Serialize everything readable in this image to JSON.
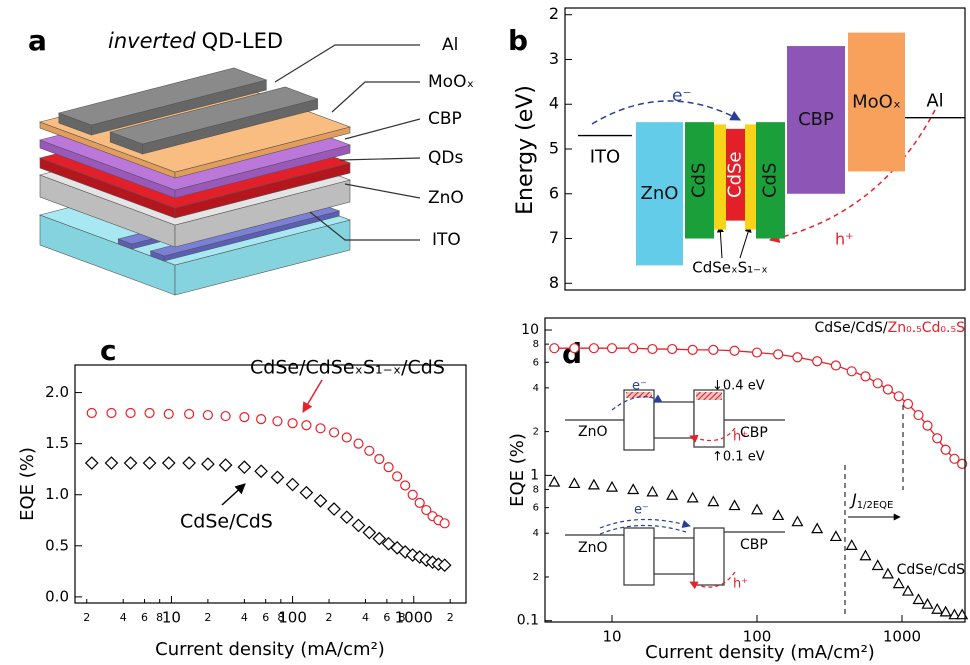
{
  "figure_a": {
    "label": "a",
    "title_italic": "inverted",
    "title": "QD-LED",
    "layers": [
      "Al",
      "MoOₓ",
      "CBP",
      "QDs",
      "ZnO",
      "ITO"
    ]
  },
  "chart_data": [
    {
      "type": "band",
      "panel_label": "b",
      "ylabel": "Energy (eV)",
      "ylim": [
        8.15,
        1.85
      ],
      "yticks": [
        2,
        3,
        4,
        5,
        6,
        7,
        8
      ],
      "bands": [
        {
          "name": "ZnO",
          "top": 4.4,
          "bottom": 7.6,
          "color": "#63cde9"
        },
        {
          "name": "CdS",
          "top": 4.4,
          "bottom": 7.0,
          "color": "#1a9f3a"
        },
        {
          "name": null,
          "top": 4.45,
          "bottom": 6.8,
          "color": "#f7d417"
        },
        {
          "name": "CdSe",
          "top": 4.55,
          "bottom": 6.6,
          "color": "#e3202a"
        },
        {
          "name": null,
          "top": 4.45,
          "bottom": 6.8,
          "color": "#f7d417"
        },
        {
          "name": "CdS",
          "top": 4.4,
          "bottom": 7.0,
          "color": "#1a9f3a"
        },
        {
          "name": "CBP",
          "top": 2.7,
          "bottom": 6.0,
          "color": "#8d55b5"
        },
        {
          "name": "MoOₓ",
          "top": 2.4,
          "bottom": 5.5,
          "color": "#f7a15c"
        }
      ],
      "levels": [
        {
          "name": "ITO",
          "value": 4.7
        },
        {
          "name": "Al",
          "value": 4.3
        }
      ],
      "annotations": {
        "electron": "e⁻",
        "hole": "h⁺",
        "interlayer": "CdSeₓS₁₋ₓ"
      }
    },
    {
      "type": "line",
      "panel_label": "c",
      "xlabel": "Current density (mA/cm²)",
      "ylabel": "EQE (%)",
      "xscale": "log",
      "xlim": [
        1.6,
        2700
      ],
      "ylim": [
        -0.06,
        2.27
      ],
      "xticks": [
        2,
        4,
        6,
        8,
        10,
        {
          "value": 20,
          "label": "2"
        },
        {
          "value": 40,
          "label": "4"
        },
        {
          "value": 60,
          "label": "6"
        },
        {
          "value": 80,
          "label": "8"
        },
        100,
        {
          "value": 200,
          "label": "2"
        },
        {
          "value": 400,
          "label": "4"
        },
        {
          "value": 600,
          "label": "6"
        },
        {
          "value": 800,
          "label": "8"
        },
        1000,
        {
          "value": 2000,
          "label": "2"
        }
      ],
      "yticks": [
        {
          "value": 0,
          "label": "0.0"
        },
        {
          "value": 0.5,
          "label": "0.5"
        },
        {
          "value": 1,
          "label": "1.0"
        },
        {
          "value": 1.5,
          "label": "1.5"
        },
        {
          "value": 2,
          "label": "2.0"
        }
      ],
      "x": [
        2.2,
        3.2,
        4.6,
        6.6,
        9.5,
        14,
        20,
        28,
        40,
        55,
        75,
        100,
        130,
        170,
        220,
        280,
        350,
        430,
        520,
        620,
        730,
        850,
        980,
        1120,
        1270,
        1430,
        1600,
        1800
      ],
      "series": [
        {
          "name": "CdSe/CdSeₓS₁₋ₓ/CdS",
          "color": "#e8202a",
          "marker": "circle",
          "values": [
            1.8,
            1.8,
            1.8,
            1.8,
            1.79,
            1.79,
            1.78,
            1.77,
            1.76,
            1.74,
            1.72,
            1.7,
            1.68,
            1.65,
            1.61,
            1.56,
            1.5,
            1.43,
            1.35,
            1.27,
            1.18,
            1.09,
            1.0,
            0.92,
            0.85,
            0.79,
            0.75,
            0.72
          ]
        },
        {
          "name": "CdSe/CdS",
          "color": "#000000",
          "marker": "diamond",
          "values": [
            1.31,
            1.31,
            1.31,
            1.31,
            1.31,
            1.31,
            1.3,
            1.29,
            1.27,
            1.23,
            1.17,
            1.1,
            1.02,
            0.94,
            0.86,
            0.78,
            0.7,
            0.63,
            0.57,
            0.52,
            0.48,
            0.44,
            0.41,
            0.39,
            0.36,
            0.34,
            0.32,
            0.31
          ]
        }
      ]
    },
    {
      "type": "line",
      "panel_label": "d",
      "xlabel": "Current density (mA/cm²)",
      "ylabel": "EQE (%)",
      "xscale": "log",
      "yscale": "log",
      "xlim": [
        3.45,
        2720
      ],
      "ylim": [
        0.098,
        12.1
      ],
      "xticks": [
        10,
        100,
        1000
      ],
      "yticks": [
        0.1,
        {
          "value": 0.2,
          "label": "2"
        },
        {
          "value": 0.4,
          "label": "4"
        },
        {
          "value": 0.6,
          "label": "6"
        },
        {
          "value": 0.8,
          "label": "8"
        },
        1,
        {
          "value": 2,
          "label": "2"
        },
        {
          "value": 4,
          "label": "4"
        },
        {
          "value": 6,
          "label": "6"
        },
        {
          "value": 8,
          "label": "8"
        },
        10
      ],
      "x": [
        4,
        5.5,
        7.5,
        10,
        14,
        19,
        26,
        36,
        50,
        70,
        100,
        140,
        190,
        260,
        350,
        450,
        560,
        680,
        800,
        950,
        1100,
        1300,
        1500,
        1750,
        2000,
        2300,
        2600
      ],
      "series": [
        {
          "label_parts": [
            "CdSe/CdS/",
            "Zn₀.₅Cd₀.₅S"
          ],
          "color": "#e8202a",
          "marker": "circle",
          "connect": true,
          "values": [
            7.5,
            7.5,
            7.5,
            7.5,
            7.5,
            7.4,
            7.4,
            7.3,
            7.3,
            7.2,
            7.0,
            6.8,
            6.5,
            6.1,
            5.7,
            5.2,
            4.8,
            4.3,
            3.9,
            3.5,
            3.1,
            2.6,
            2.2,
            1.8,
            1.5,
            1.3,
            1.2
          ]
        },
        {
          "name": "CdSe/CdS",
          "color": "#000000",
          "marker": "triangle",
          "values": [
            0.9,
            0.88,
            0.86,
            0.83,
            0.8,
            0.77,
            0.73,
            0.7,
            0.66,
            0.62,
            0.58,
            0.53,
            0.48,
            0.43,
            0.38,
            0.33,
            0.28,
            0.24,
            0.21,
            0.18,
            0.16,
            0.14,
            0.13,
            0.12,
            0.115,
            0.11,
            0.11
          ]
        }
      ],
      "annotations": {
        "j": "J",
        "j_sub": "1/2EQE",
        "inset": {
          "left": "ZnO",
          "right": "CBP",
          "electron": "e⁻",
          "hole": "h⁺",
          "gap_top": "↓0.4 eV",
          "gap_bottom": "↑0.1 eV"
        }
      }
    }
  ]
}
